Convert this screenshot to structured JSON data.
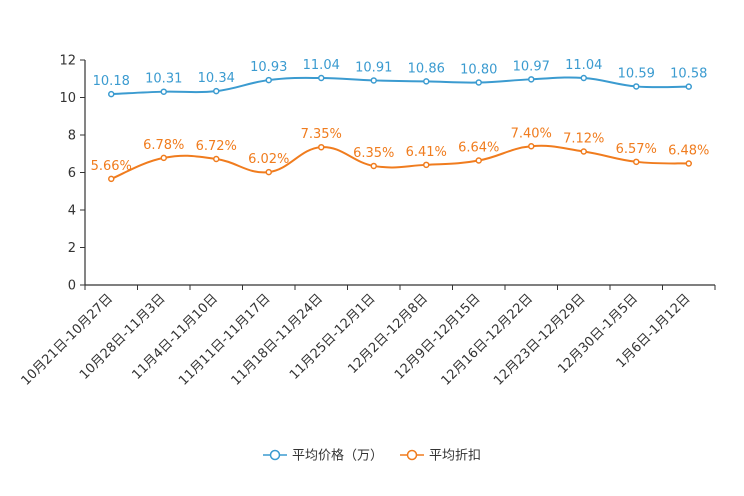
{
  "chart_data": {
    "type": "line",
    "categories": [
      "10月21日-10月27日",
      "10月28日-11月3日",
      "11月4日-11月10日",
      "11月11日-11月17日",
      "11月18日-11月24日",
      "11月25日-12月1日",
      "12月2日-12月8日",
      "12月9日-12月15日",
      "12月16日-12月22日",
      "12月23日-12月29日",
      "12月30日-1月5日",
      "1月6日-1月12日"
    ],
    "ylim": [
      0,
      12
    ],
    "yticks": [
      0,
      2,
      4,
      6,
      8,
      10,
      12
    ],
    "series": [
      {
        "name": "平均价格（万）",
        "color": "#3b9bd0",
        "values": [
          10.18,
          10.31,
          10.34,
          10.93,
          11.04,
          10.91,
          10.86,
          10.8,
          10.97,
          11.04,
          10.59,
          10.58
        ],
        "labels": [
          "10.18",
          "10.31",
          "10.34",
          "10.93",
          "11.04",
          "10.91",
          "10.86",
          "10.80",
          "10.97",
          "11.04",
          "10.59",
          "10.58"
        ]
      },
      {
        "name": "平均折扣",
        "color": "#f07c1e",
        "values": [
          5.66,
          6.78,
          6.72,
          6.02,
          7.35,
          6.35,
          6.41,
          6.64,
          7.4,
          7.12,
          6.57,
          6.48
        ],
        "labels": [
          "5.66%",
          "6.78%",
          "6.72%",
          "6.02%",
          "7.35%",
          "6.35%",
          "6.41%",
          "6.64%",
          "7.40%",
          "7.12%",
          "6.57%",
          "6.48%"
        ]
      }
    ]
  }
}
